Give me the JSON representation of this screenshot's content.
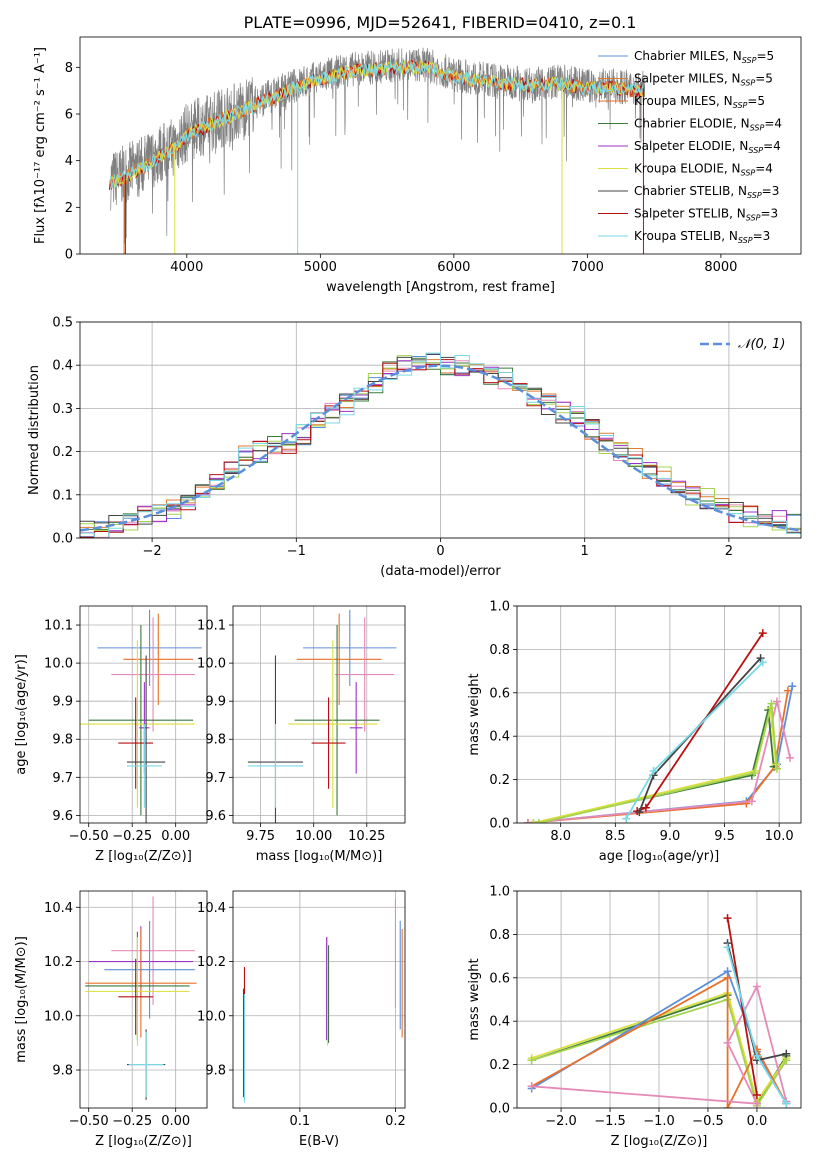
{
  "title": "PLATE=0996, MJD=52641, FIBERID=0410, z=0.1",
  "colors": {
    "chabrier_miles": "#5b8fdc",
    "salpeter_miles": "#e07b32",
    "kroupa_miles": "#e8702a",
    "chabrier_elodie": "#3a7a3a",
    "salpeter_elodie": "#9b30c8",
    "kroupa_elodie": "#d9df3c",
    "chabrier_stelib": "#444444",
    "salpeter_stelib": "#b81010",
    "kroupa_stelib": "#7ad9e6",
    "pink": "#e58ab8",
    "lime": "#a4d450",
    "data": "#808080",
    "gauss": "#5b8fdc"
  },
  "chart_data": [
    {
      "id": "spectrum",
      "type": "line",
      "xlabel": "wavelength [Angstrom, rest frame]",
      "ylabel": "Flux [fλ10⁻¹⁷ erg cm⁻² s⁻¹ A⁻¹]",
      "xlim": [
        3200,
        8600
      ],
      "ylim": [
        0,
        9.3
      ],
      "xticks": [
        "4000",
        "5000",
        "6000",
        "7000",
        "8000"
      ],
      "yticks": [
        "0",
        "2",
        "4",
        "6",
        "8"
      ],
      "legend_position": "top-right",
      "legend": [
        "Chabrier MILES, N_SSP=5",
        "Salpeter MILES, N_SSP=5",
        "Kroupa MILES, N_SSP=5",
        "Chabrier ELODIE, N_SSP=4",
        "Salpeter ELODIE, N_SSP=4",
        "Kroupa ELODIE, N_SSP=4",
        "Chabrier STELIB, N_SSP=3",
        "Salpeter STELIB, N_SSP=3",
        "Kroupa STELIB, N_SSP=3"
      ],
      "continuum": {
        "x": [
          3400,
          3500,
          3600,
          3700,
          3800,
          3900,
          4000,
          4200,
          4400,
          4600,
          4800,
          5000,
          5200,
          5400,
          5600,
          5800,
          6000,
          6200,
          6400,
          6600,
          6800,
          7000,
          7200,
          7400
        ],
        "y": [
          3.1,
          3.3,
          3.6,
          3.9,
          4.3,
          4.6,
          5.2,
          5.7,
          6.2,
          6.7,
          7.2,
          7.6,
          7.9,
          8.0,
          8.1,
          8.1,
          7.7,
          7.5,
          7.4,
          7.3,
          7.4,
          7.2,
          7.2,
          7.1
        ]
      }
    },
    {
      "id": "residuals",
      "type": "line",
      "xlabel": "(data-model)/error",
      "ylabel": "Normed distribution",
      "xlim": [
        -2.5,
        2.5
      ],
      "ylim": [
        0,
        0.5
      ],
      "xticks": [
        "−2",
        "−1",
        "0",
        "1",
        "2"
      ],
      "yticks": [
        "0.0",
        "0.1",
        "0.2",
        "0.3",
        "0.4",
        "0.5"
      ],
      "legend_position": "top-right",
      "legend": [
        "𝒩(0, 1)"
      ],
      "bin_centers": [
        -2.45,
        -2.35,
        -2.25,
        -2.15,
        -2.05,
        -1.95,
        -1.85,
        -1.75,
        -1.65,
        -1.55,
        -1.45,
        -1.35,
        -1.25,
        -1.15,
        -1.05,
        -0.95,
        -0.85,
        -0.75,
        -0.65,
        -0.55,
        -0.45,
        -0.35,
        -0.25,
        -0.15,
        -0.05,
        0.05,
        0.15,
        0.25,
        0.35,
        0.45,
        0.55,
        0.65,
        0.75,
        0.85,
        0.95,
        1.05,
        1.15,
        1.25,
        1.35,
        1.45,
        1.55,
        1.65,
        1.75,
        1.85,
        1.95,
        2.05,
        2.15,
        2.25,
        2.35,
        2.45
      ],
      "hist_values": [
        0.02,
        0.02,
        0.03,
        0.04,
        0.05,
        0.06,
        0.07,
        0.08,
        0.1,
        0.13,
        0.16,
        0.19,
        0.2,
        0.21,
        0.22,
        0.24,
        0.27,
        0.29,
        0.31,
        0.33,
        0.36,
        0.39,
        0.4,
        0.4,
        0.41,
        0.4,
        0.4,
        0.39,
        0.38,
        0.37,
        0.36,
        0.33,
        0.31,
        0.29,
        0.28,
        0.25,
        0.22,
        0.2,
        0.19,
        0.16,
        0.14,
        0.12,
        0.1,
        0.09,
        0.07,
        0.06,
        0.05,
        0.04,
        0.04,
        0.03
      ]
    },
    {
      "id": "age-vs-Z",
      "type": "scatter",
      "xlabel": "Z [log₁₀(Z/Z⊙)]",
      "ylabel": "age  [log₁₀(age/yr)]",
      "xlim": [
        -0.55,
        0.18
      ],
      "ylim": [
        9.58,
        10.15
      ],
      "xticks": [
        "−0.50",
        "−0.25",
        "0.00"
      ],
      "yticks": [
        "9.6",
        "9.7",
        "9.8",
        "9.9",
        "10.0",
        "10.1"
      ],
      "points": [
        {
          "x": -0.15,
          "xerr": 0.3,
          "y": 10.04,
          "yerr": 0.1,
          "c": "chabrier_miles"
        },
        {
          "x": -0.1,
          "xerr": 0.2,
          "y": 10.01,
          "yerr": 0.12,
          "c": "kroupa_miles"
        },
        {
          "x": -0.13,
          "xerr": 0.24,
          "y": 9.97,
          "yerr": 0.15,
          "c": "pink"
        },
        {
          "x": -0.2,
          "xerr": 0.3,
          "y": 9.85,
          "yerr": 0.25,
          "c": "chabrier_elodie"
        },
        {
          "x": -0.22,
          "xerr": 0.33,
          "y": 9.84,
          "yerr": 0.22,
          "c": "kroupa_elodie"
        },
        {
          "x": -0.18,
          "xerr": 0.03,
          "y": 9.83,
          "yerr": 0.12,
          "c": "salpeter_elodie"
        },
        {
          "x": -0.23,
          "xerr": 0.1,
          "y": 9.79,
          "yerr": 0.12,
          "c": "salpeter_stelib"
        },
        {
          "x": -0.17,
          "xerr": 0.11,
          "y": 9.74,
          "yerr": 0.28,
          "c": "chabrier_stelib"
        },
        {
          "x": -0.18,
          "xerr": 0.1,
          "y": 9.73,
          "yerr": 0.11,
          "c": "kroupa_stelib"
        }
      ]
    },
    {
      "id": "age-vs-mass",
      "type": "scatter",
      "xlabel": "mass [log₁₀(M/M⊙)]",
      "ylabel": "",
      "xlim": [
        9.62,
        10.43
      ],
      "ylim": [
        9.58,
        10.15
      ],
      "xticks": [
        "9.75",
        "10.00",
        "10.25"
      ],
      "yticks": [
        "9.6",
        "9.7",
        "9.8",
        "9.9",
        "10.0",
        "10.1"
      ],
      "points": [
        {
          "x": 10.17,
          "xerr": 0.22,
          "y": 10.04,
          "yerr": 0.1,
          "c": "chabrier_miles"
        },
        {
          "x": 10.12,
          "xerr": 0.2,
          "y": 10.01,
          "yerr": 0.12,
          "c": "kroupa_miles"
        },
        {
          "x": 10.24,
          "xerr": 0.14,
          "y": 9.97,
          "yerr": 0.15,
          "c": "pink"
        },
        {
          "x": 10.11,
          "xerr": 0.2,
          "y": 9.85,
          "yerr": 0.25,
          "c": "chabrier_elodie"
        },
        {
          "x": 10.09,
          "xerr": 0.21,
          "y": 9.84,
          "yerr": 0.22,
          "c": "kroupa_elodie"
        },
        {
          "x": 10.2,
          "xerr": 0.03,
          "y": 9.83,
          "yerr": 0.12,
          "c": "salpeter_elodie"
        },
        {
          "x": 10.07,
          "xerr": 0.08,
          "y": 9.79,
          "yerr": 0.12,
          "c": "salpeter_stelib"
        },
        {
          "x": 9.82,
          "xerr": 0.13,
          "y": 9.74,
          "yerr": 0.28,
          "c": "chabrier_stelib"
        },
        {
          "x": 9.82,
          "xerr": 0.13,
          "y": 9.73,
          "yerr": 0.11,
          "c": "kroupa_stelib"
        }
      ]
    },
    {
      "id": "massweight-vs-age",
      "type": "line",
      "xlabel": "age  [log₁₀(age/yr)]",
      "ylabel": "mass weight",
      "xlim": [
        7.6,
        10.2
      ],
      "ylim": [
        0,
        1.0
      ],
      "xticks": [
        "8.0",
        "8.5",
        "9.0",
        "9.5",
        "10.0"
      ],
      "yticks": [
        "0.0",
        "0.2",
        "0.4",
        "0.6",
        "0.8",
        "1.0"
      ],
      "series": [
        {
          "c": "chabrier_miles",
          "x": [
            7.7,
            9.7,
            9.98,
            10.12
          ],
          "y": [
            0.0,
            0.1,
            0.27,
            0.63
          ]
        },
        {
          "c": "kroupa_miles",
          "x": [
            7.7,
            9.7,
            9.96,
            10.08
          ],
          "y": [
            0.0,
            0.09,
            0.26,
            0.61
          ]
        },
        {
          "c": "pink",
          "x": [
            7.7,
            9.75,
            9.98,
            10.1
          ],
          "y": [
            0.0,
            0.1,
            0.56,
            0.3
          ]
        },
        {
          "c": "chabrier_elodie",
          "x": [
            7.75,
            9.75,
            9.9,
            9.95
          ],
          "y": [
            0.0,
            0.22,
            0.52,
            0.26
          ]
        },
        {
          "c": "kroupa_elodie",
          "x": [
            7.75,
            9.78,
            9.92,
            9.97
          ],
          "y": [
            0.0,
            0.24,
            0.53,
            0.27
          ]
        },
        {
          "c": "lime",
          "x": [
            7.8,
            9.77,
            9.93,
            9.98
          ],
          "y": [
            0.0,
            0.23,
            0.55,
            0.25
          ]
        },
        {
          "c": "salpeter_stelib",
          "x": [
            8.7,
            8.78,
            9.85
          ],
          "y": [
            0.055,
            0.07,
            0.875
          ]
        },
        {
          "c": "chabrier_stelib",
          "x": [
            8.72,
            8.85,
            9.83
          ],
          "y": [
            0.05,
            0.22,
            0.76
          ]
        },
        {
          "c": "kroupa_stelib",
          "x": [
            8.6,
            8.85,
            9.85
          ],
          "y": [
            0.02,
            0.24,
            0.74
          ]
        }
      ]
    },
    {
      "id": "mass-vs-Z",
      "type": "scatter",
      "xlabel": "Z [log₁₀(Z/Z⊙)]",
      "ylabel": "mass [log₁₀(M/M⊙)]",
      "xlim": [
        -0.55,
        0.18
      ],
      "ylim": [
        9.66,
        10.46
      ],
      "xticks": [
        "−0.50",
        "−0.25",
        "0.00"
      ],
      "yticks": [
        "9.8",
        "10.0",
        "10.2",
        "10.4"
      ],
      "points": [
        {
          "x": -0.13,
          "xerr": 0.24,
          "y": 10.24,
          "yerr": 0.2,
          "c": "pink"
        },
        {
          "x": -0.2,
          "xerr": 0.3,
          "y": 10.2,
          "yerr": 0.13,
          "c": "salpeter_elodie"
        },
        {
          "x": -0.15,
          "xerr": 0.26,
          "y": 10.17,
          "yerr": 0.18,
          "c": "chabrier_miles"
        },
        {
          "x": -0.2,
          "xerr": 0.32,
          "y": 10.12,
          "yerr": 0.2,
          "c": "kroupa_miles"
        },
        {
          "x": -0.22,
          "xerr": 0.3,
          "y": 10.11,
          "yerr": 0.2,
          "c": "chabrier_elodie"
        },
        {
          "x": -0.22,
          "xerr": 0.3,
          "y": 10.09,
          "yerr": 0.2,
          "c": "kroupa_elodie"
        },
        {
          "x": -0.23,
          "xerr": 0.1,
          "y": 10.07,
          "yerr": 0.14,
          "c": "salpeter_stelib"
        },
        {
          "x": -0.17,
          "xerr": 0.11,
          "y": 9.82,
          "yerr": 0.13,
          "c": "chabrier_stelib"
        },
        {
          "x": -0.17,
          "xerr": 0.1,
          "y": 9.82,
          "yerr": 0.12,
          "c": "kroupa_stelib"
        }
      ]
    },
    {
      "id": "mass-vs-ebv",
      "type": "scatter",
      "xlabel": "E(B-V)",
      "ylabel": "",
      "xlim": [
        0.03,
        0.21
      ],
      "ylim": [
        9.66,
        10.46
      ],
      "xticks": [
        "0.1",
        "0.2"
      ],
      "yticks": [
        "9.8",
        "10.0",
        "10.2",
        "10.4"
      ],
      "points": [
        {
          "x": 0.042,
          "xerr": 0,
          "y": 10.0,
          "yerr": 0.18,
          "c": "salpeter_stelib"
        },
        {
          "x": 0.041,
          "xerr": 0,
          "y": 9.9,
          "yerr": 0.2,
          "c": "chabrier_stelib"
        },
        {
          "x": 0.042,
          "xerr": 0,
          "y": 9.88,
          "yerr": 0.2,
          "c": "kroupa_stelib"
        },
        {
          "x": 0.128,
          "xerr": 0,
          "y": 10.1,
          "yerr": 0.19,
          "c": "salpeter_elodie"
        },
        {
          "x": 0.129,
          "xerr": 0,
          "y": 10.09,
          "yerr": 0.2,
          "c": "kroupa_elodie"
        },
        {
          "x": 0.13,
          "xerr": 0,
          "y": 10.08,
          "yerr": 0.18,
          "c": "chabrier_elodie"
        },
        {
          "x": 0.2,
          "xerr": 0,
          "y": 10.23,
          "yerr": 0.2,
          "c": "pink"
        },
        {
          "x": 0.205,
          "xerr": 0,
          "y": 10.15,
          "yerr": 0.2,
          "c": "chabrier_miles"
        },
        {
          "x": 0.207,
          "xerr": 0,
          "y": 10.12,
          "yerr": 0.2,
          "c": "kroupa_miles"
        }
      ]
    },
    {
      "id": "massweight-vs-Z",
      "type": "line",
      "xlabel": "Z [log₁₀(Z/Z⊙)]",
      "ylabel": "mass weight",
      "xlim": [
        -2.45,
        0.45
      ],
      "ylim": [
        0,
        1.0
      ],
      "xticks": [
        "−2.0",
        "−1.5",
        "−1.0",
        "−0.5",
        "0.0"
      ],
      "yticks": [
        "0.0",
        "0.2",
        "0.4",
        "0.6",
        "0.8",
        "1.0"
      ],
      "series": [
        {
          "c": "chabrier_elodie",
          "x": [
            -2.3,
            -0.3,
            0.0,
            0.3
          ],
          "y": [
            0.22,
            0.52,
            0.02,
            0.24
          ]
        },
        {
          "c": "kroupa_elodie",
          "x": [
            -2.3,
            -0.3,
            0.0,
            0.3
          ],
          "y": [
            0.23,
            0.53,
            0.03,
            0.23
          ]
        },
        {
          "c": "lime",
          "x": [
            -2.3,
            -0.3,
            0.0,
            0.3
          ],
          "y": [
            0.22,
            0.5,
            0.01,
            0.22
          ]
        },
        {
          "c": "chabrier_miles",
          "x": [
            -2.3,
            -0.3,
            0.0,
            0.3
          ],
          "y": [
            0.09,
            0.63,
            0.26,
            0.02
          ]
        },
        {
          "c": "kroupa_miles",
          "x": [
            -2.3,
            -0.3,
            -0.3,
            0.0,
            0.3
          ],
          "y": [
            0.1,
            0.6,
            0.0,
            0.27,
            0.02
          ]
        },
        {
          "c": "pink",
          "x": [
            -2.3,
            0.0,
            -0.3,
            0.0,
            0.3
          ],
          "y": [
            0.1,
            0.02,
            0.3,
            0.56,
            0.03
          ]
        },
        {
          "c": "salpeter_stelib",
          "x": [
            -0.3,
            0.0
          ],
          "y": [
            0.875,
            0.06
          ]
        },
        {
          "c": "chabrier_stelib",
          "x": [
            -0.3,
            0.0,
            0.3
          ],
          "y": [
            0.76,
            0.22,
            0.25
          ]
        },
        {
          "c": "kroupa_stelib",
          "x": [
            -0.3,
            0.0,
            0.3
          ],
          "y": [
            0.74,
            0.24,
            0.02
          ]
        }
      ]
    }
  ]
}
